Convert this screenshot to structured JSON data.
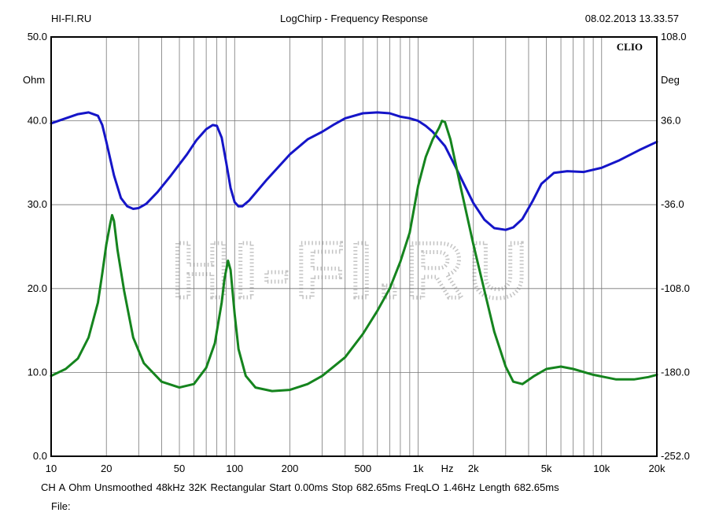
{
  "header": {
    "site": "HI-FI.RU",
    "title": "LogChirp - Frequency Response",
    "datetime": "08.02.2013 13.33.57"
  },
  "footer": {
    "line1": "CH A   Ohm   Unsmoothed   48kHz   32K   Rectangular   Start 0.00ms    Stop 682.65ms    FreqLO 1.46Hz    Length 682.65ms",
    "line2": "File:"
  },
  "chart_data": {
    "type": "line",
    "brand_label": "CLIO",
    "watermark": "HI-FI.RU",
    "x_unit": "Hz",
    "x_scale": "log",
    "xlim": [
      10,
      20000
    ],
    "x_tick_labels": [
      "10",
      "20",
      "50",
      "100",
      "200",
      "500",
      "1k",
      "Hz",
      "2k",
      "5k",
      "10k",
      "20k"
    ],
    "left_axis": {
      "unit": "Ohm",
      "ylim": [
        0,
        50
      ],
      "tick_labels": [
        "50.0",
        "40.0",
        "30.0",
        "20.0",
        "10.0",
        "0.0"
      ]
    },
    "right_axis": {
      "unit": "Deg",
      "ylim": [
        -252,
        108
      ],
      "tick_labels": [
        "108.0",
        "36.0",
        "-36.0",
        "-108.0",
        "-180.0",
        "-252.0"
      ]
    },
    "grid": true,
    "series": [
      {
        "axis": "left",
        "color": "#1515c8",
        "points": [
          [
            10,
            39.7
          ],
          [
            12,
            40.3
          ],
          [
            14,
            40.8
          ],
          [
            16,
            41.0
          ],
          [
            18,
            40.6
          ],
          [
            19,
            39.5
          ],
          [
            20,
            37.5
          ],
          [
            22,
            33.5
          ],
          [
            24,
            30.8
          ],
          [
            26,
            29.8
          ],
          [
            28,
            29.5
          ],
          [
            30,
            29.6
          ],
          [
            33,
            30.1
          ],
          [
            38,
            31.5
          ],
          [
            45,
            33.5
          ],
          [
            55,
            36.0
          ],
          [
            62,
            37.7
          ],
          [
            70,
            39.0
          ],
          [
            76,
            39.5
          ],
          [
            80,
            39.4
          ],
          [
            85,
            38.0
          ],
          [
            90,
            35.0
          ],
          [
            95,
            32.0
          ],
          [
            100,
            30.3
          ],
          [
            105,
            29.8
          ],
          [
            110,
            29.8
          ],
          [
            120,
            30.5
          ],
          [
            150,
            33.0
          ],
          [
            200,
            36.0
          ],
          [
            250,
            37.8
          ],
          [
            300,
            38.7
          ],
          [
            350,
            39.6
          ],
          [
            400,
            40.3
          ],
          [
            500,
            40.9
          ],
          [
            600,
            41.0
          ],
          [
            700,
            40.9
          ],
          [
            800,
            40.5
          ],
          [
            900,
            40.3
          ],
          [
            1000,
            40.0
          ],
          [
            1100,
            39.4
          ],
          [
            1200,
            38.7
          ],
          [
            1400,
            37.0
          ],
          [
            1600,
            34.5
          ],
          [
            1800,
            32.2
          ],
          [
            2000,
            30.2
          ],
          [
            2300,
            28.2
          ],
          [
            2600,
            27.2
          ],
          [
            3000,
            27.0
          ],
          [
            3300,
            27.3
          ],
          [
            3700,
            28.3
          ],
          [
            4200,
            30.4
          ],
          [
            4700,
            32.5
          ],
          [
            5500,
            33.8
          ],
          [
            6500,
            34.0
          ],
          [
            8000,
            33.9
          ],
          [
            10000,
            34.4
          ],
          [
            12500,
            35.3
          ],
          [
            16000,
            36.5
          ],
          [
            20000,
            37.5
          ]
        ]
      },
      {
        "axis": "right",
        "color": "#15841e",
        "points": [
          [
            10,
            -183
          ],
          [
            12,
            -177
          ],
          [
            14,
            -168
          ],
          [
            16,
            -150
          ],
          [
            18,
            -120
          ],
          [
            19,
            -95
          ],
          [
            20,
            -70
          ],
          [
            21,
            -52
          ],
          [
            21.5,
            -45
          ],
          [
            22,
            -50
          ],
          [
            23,
            -75
          ],
          [
            25,
            -110
          ],
          [
            28,
            -150
          ],
          [
            32,
            -172
          ],
          [
            40,
            -188
          ],
          [
            50,
            -193
          ],
          [
            60,
            -190
          ],
          [
            70,
            -176
          ],
          [
            78,
            -155
          ],
          [
            85,
            -120
          ],
          [
            88,
            -100
          ],
          [
            92,
            -84
          ],
          [
            95,
            -92
          ],
          [
            100,
            -130
          ],
          [
            105,
            -160
          ],
          [
            115,
            -183
          ],
          [
            130,
            -193
          ],
          [
            160,
            -196
          ],
          [
            200,
            -195
          ],
          [
            250,
            -190
          ],
          [
            300,
            -183
          ],
          [
            400,
            -167
          ],
          [
            500,
            -147
          ],
          [
            600,
            -127
          ],
          [
            700,
            -108
          ],
          [
            800,
            -85
          ],
          [
            900,
            -60
          ],
          [
            1000,
            -20
          ],
          [
            1100,
            5
          ],
          [
            1200,
            20
          ],
          [
            1300,
            30
          ],
          [
            1350,
            36
          ],
          [
            1400,
            35
          ],
          [
            1500,
            20
          ],
          [
            1700,
            -20
          ],
          [
            2000,
            -70
          ],
          [
            2300,
            -110
          ],
          [
            2600,
            -145
          ],
          [
            3000,
            -175
          ],
          [
            3300,
            -188
          ],
          [
            3700,
            -190
          ],
          [
            4300,
            -183
          ],
          [
            5000,
            -177
          ],
          [
            6000,
            -175
          ],
          [
            7000,
            -177
          ],
          [
            9000,
            -182
          ],
          [
            12000,
            -186
          ],
          [
            15000,
            -186
          ],
          [
            18000,
            -184
          ],
          [
            20000,
            -182
          ]
        ]
      }
    ]
  }
}
